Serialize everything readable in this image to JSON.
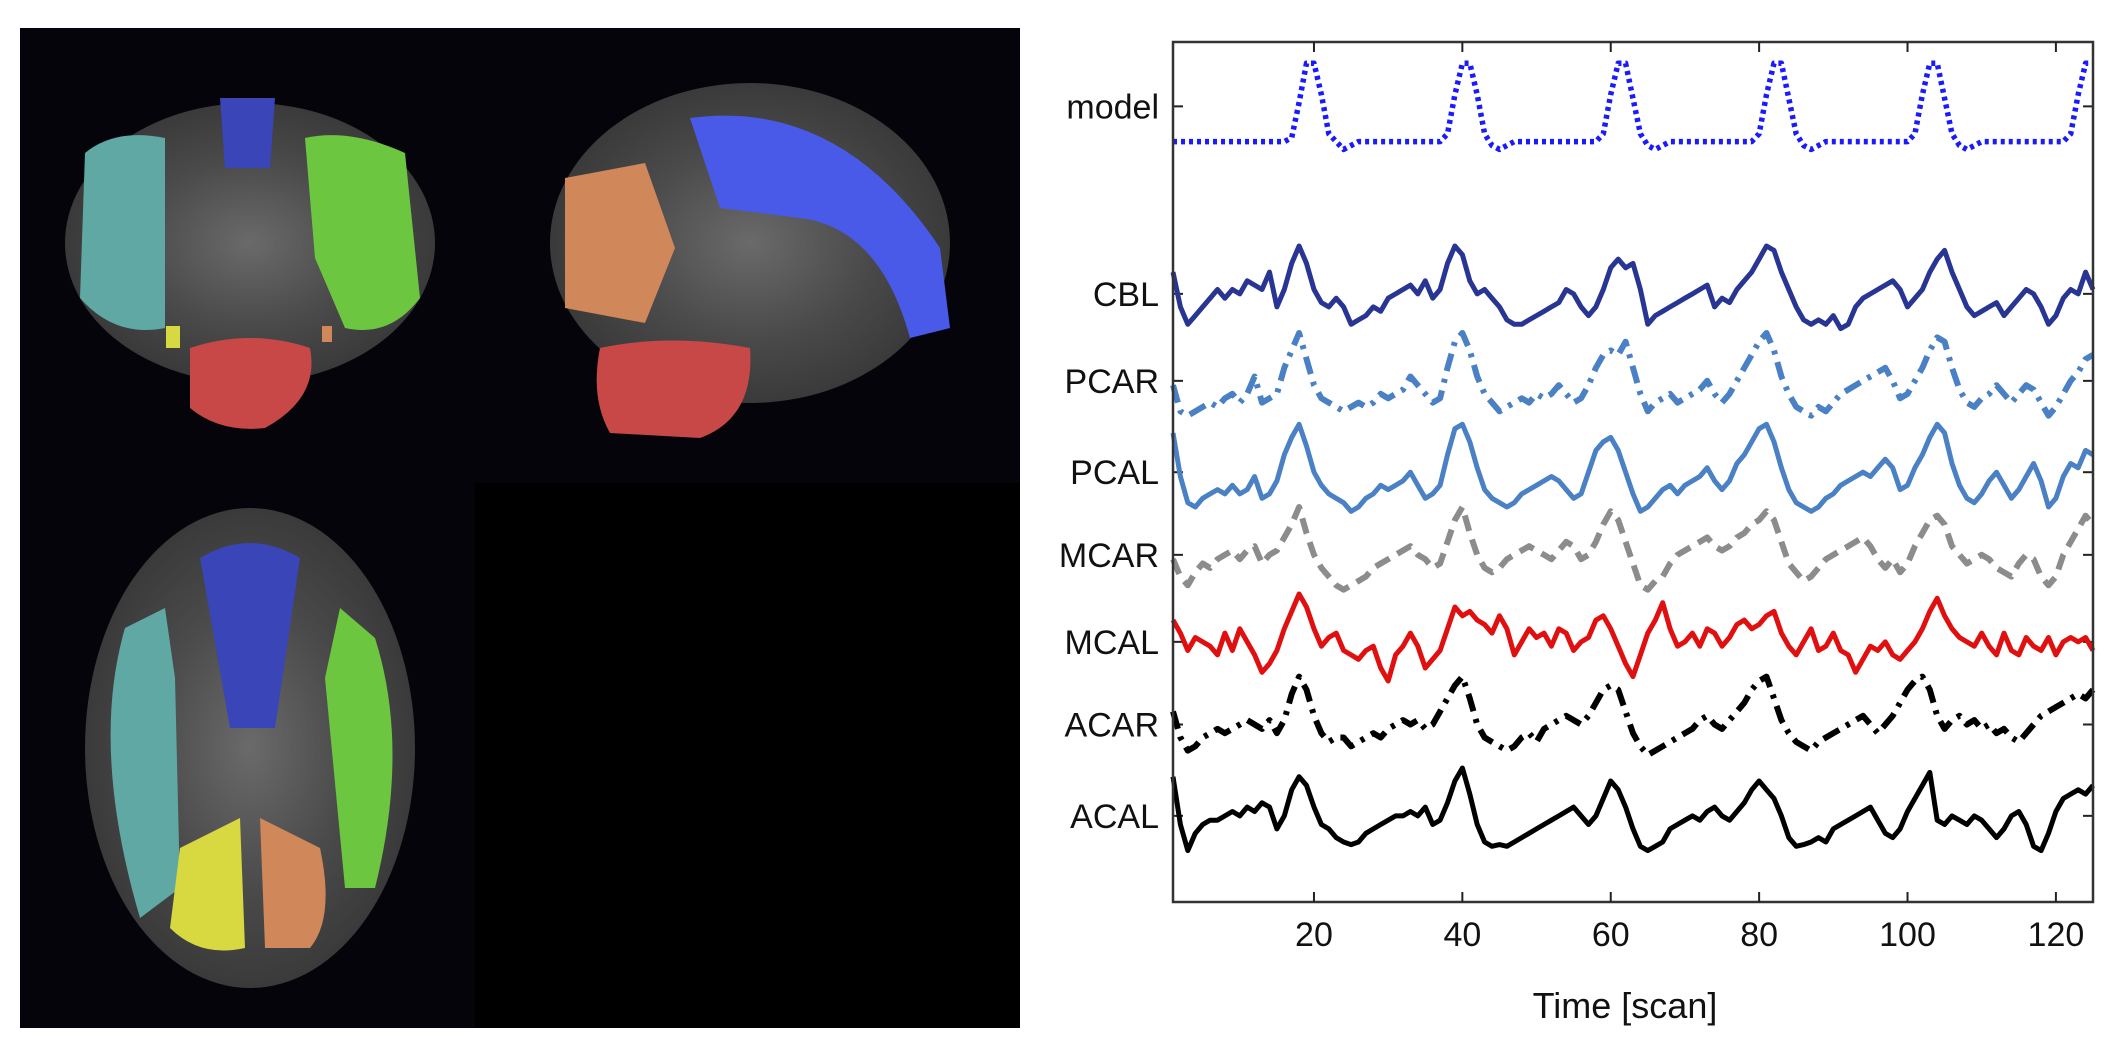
{
  "colors": {
    "model": "#1a1aff",
    "CBL": "#283593",
    "PCAR": "#4a80c4",
    "PCAL": "#4a80c4",
    "MCAR": "#8c8c8c",
    "MCAL": "#e01010",
    "ACAR": "#000000",
    "ACAL": "#000000",
    "atlas_blue": "#4a5ae8",
    "atlas_green": "#6cc640",
    "atlas_teal": "#5fa8a4",
    "atlas_orange": "#d0875a",
    "atlas_red": "#c84848",
    "atlas_yellow": "#d8d840",
    "background": "#000000"
  },
  "brain_views": [
    {
      "view": "coronal",
      "regions": [
        "blue",
        "green",
        "teal",
        "red",
        "yellow",
        "orange"
      ]
    },
    {
      "view": "sagittal",
      "regions": [
        "blue",
        "orange",
        "red"
      ]
    },
    {
      "view": "axial",
      "regions": [
        "blue",
        "green",
        "teal",
        "yellow",
        "orange"
      ]
    }
  ],
  "chart_data": {
    "type": "line",
    "xlabel": "Time [scan]",
    "ylabel": "",
    "title": "",
    "xlim": [
      1,
      125
    ],
    "xticks": [
      20,
      40,
      60,
      80,
      100,
      120
    ],
    "grid": false,
    "series_labels_position": "left",
    "series": [
      {
        "name": "model",
        "style": "dotted",
        "color": "#1a1aff",
        "offset": 8.2,
        "amplitude": 0.9,
        "values": [
          0,
          0,
          0,
          0,
          0,
          0,
          0,
          0,
          0,
          0,
          0,
          0,
          0,
          0,
          0,
          0,
          0.05,
          0.5,
          1,
          1,
          0.6,
          0.1,
          0,
          -0.1,
          -0.05,
          0,
          0,
          0,
          0,
          0,
          0,
          0,
          0,
          0,
          0,
          0,
          0,
          0.1,
          0.6,
          1,
          1,
          0.6,
          0.1,
          -0.05,
          -0.1,
          -0.05,
          0,
          0,
          0,
          0,
          0,
          0,
          0,
          0,
          0,
          0,
          0,
          0,
          0.1,
          0.6,
          1,
          1,
          0.55,
          0.1,
          -0.05,
          -0.1,
          -0.05,
          0,
          0,
          0,
          0,
          0,
          0,
          0,
          0,
          0,
          0,
          0,
          0,
          0.1,
          0.6,
          1,
          1,
          0.55,
          0.1,
          -0.05,
          -0.1,
          -0.05,
          0,
          0,
          0,
          0,
          0,
          0,
          0,
          0,
          0,
          0,
          0,
          0,
          0.1,
          0.6,
          1,
          1,
          0.55,
          0.1,
          -0.05,
          -0.1,
          -0.05,
          0,
          0,
          0,
          0,
          0,
          0,
          0,
          0,
          0,
          0,
          0,
          0,
          0.1,
          0.6,
          1,
          1
        ]
      },
      {
        "name": "CBL",
        "style": "solid",
        "color": "#283593",
        "offset": 6.0,
        "amplitude": 1.0,
        "values": [
          0.7,
          0.3,
          0.1,
          0.2,
          0.3,
          0.4,
          0.5,
          0.4,
          0.5,
          0.45,
          0.6,
          0.55,
          0.5,
          0.7,
          0.3,
          0.5,
          0.8,
          1.0,
          0.8,
          0.5,
          0.35,
          0.3,
          0.4,
          0.3,
          0.1,
          0.15,
          0.2,
          0.3,
          0.25,
          0.4,
          0.45,
          0.5,
          0.55,
          0.45,
          0.6,
          0.4,
          0.5,
          0.8,
          1.0,
          0.9,
          0.6,
          0.45,
          0.5,
          0.4,
          0.3,
          0.15,
          0.1,
          0.1,
          0.15,
          0.2,
          0.25,
          0.3,
          0.35,
          0.5,
          0.45,
          0.3,
          0.2,
          0.3,
          0.5,
          0.75,
          0.85,
          0.75,
          0.8,
          0.5,
          0.1,
          0.2,
          0.25,
          0.3,
          0.35,
          0.4,
          0.45,
          0.5,
          0.55,
          0.3,
          0.4,
          0.35,
          0.5,
          0.6,
          0.7,
          0.85,
          1.0,
          0.95,
          0.7,
          0.5,
          0.3,
          0.15,
          0.1,
          0.15,
          0.1,
          0.2,
          0.05,
          0.1,
          0.3,
          0.4,
          0.45,
          0.5,
          0.55,
          0.6,
          0.5,
          0.3,
          0.4,
          0.5,
          0.7,
          0.85,
          0.95,
          0.7,
          0.5,
          0.3,
          0.2,
          0.25,
          0.3,
          0.35,
          0.2,
          0.3,
          0.4,
          0.5,
          0.45,
          0.3,
          0.1,
          0.2,
          0.4,
          0.5,
          0.45,
          0.7,
          0.5
        ]
      },
      {
        "name": "PCAR",
        "style": "dashdot",
        "color": "#4a80c4",
        "offset": 5.0,
        "amplitude": 1.0,
        "values": [
          0.4,
          0.1,
          0.05,
          0.1,
          0.15,
          0.2,
          0.15,
          0.25,
          0.3,
          0.2,
          0.3,
          0.5,
          0.2,
          0.25,
          0.3,
          0.6,
          0.8,
          1.0,
          0.7,
          0.4,
          0.25,
          0.2,
          0.15,
          0.1,
          0.15,
          0.2,
          0.15,
          0.2,
          0.3,
          0.25,
          0.3,
          0.35,
          0.5,
          0.4,
          0.3,
          0.2,
          0.25,
          0.6,
          0.9,
          1.0,
          0.8,
          0.5,
          0.3,
          0.2,
          0.1,
          0.15,
          0.2,
          0.25,
          0.2,
          0.3,
          0.25,
          0.3,
          0.4,
          0.3,
          0.2,
          0.25,
          0.4,
          0.6,
          0.75,
          0.8,
          0.75,
          0.9,
          0.6,
          0.3,
          0.1,
          0.2,
          0.25,
          0.3,
          0.2,
          0.25,
          0.3,
          0.35,
          0.45,
          0.3,
          0.2,
          0.3,
          0.45,
          0.6,
          0.75,
          0.9,
          1.0,
          0.8,
          0.5,
          0.3,
          0.15,
          0.1,
          0.05,
          0.15,
          0.1,
          0.2,
          0.3,
          0.35,
          0.4,
          0.45,
          0.5,
          0.55,
          0.6,
          0.45,
          0.25,
          0.3,
          0.45,
          0.6,
          0.8,
          0.95,
          0.9,
          0.6,
          0.35,
          0.2,
          0.15,
          0.25,
          0.3,
          0.4,
          0.3,
          0.2,
          0.3,
          0.4,
          0.35,
          0.2,
          0.05,
          0.15,
          0.3,
          0.45,
          0.55,
          0.7,
          0.75
        ]
      },
      {
        "name": "PCAL",
        "style": "solid",
        "color": "#4a80c4",
        "offset": 3.95,
        "amplitude": 1.0,
        "values": [
          0.9,
          0.4,
          0.1,
          0.05,
          0.15,
          0.2,
          0.25,
          0.2,
          0.3,
          0.2,
          0.25,
          0.4,
          0.15,
          0.2,
          0.35,
          0.65,
          0.85,
          1.0,
          0.75,
          0.45,
          0.3,
          0.2,
          0.15,
          0.1,
          0.0,
          0.05,
          0.15,
          0.2,
          0.3,
          0.25,
          0.3,
          0.35,
          0.45,
          0.3,
          0.15,
          0.2,
          0.3,
          0.65,
          0.95,
          1.0,
          0.8,
          0.5,
          0.25,
          0.15,
          0.1,
          0.05,
          0.1,
          0.2,
          0.25,
          0.3,
          0.35,
          0.4,
          0.35,
          0.25,
          0.15,
          0.2,
          0.45,
          0.7,
          0.8,
          0.85,
          0.7,
          0.45,
          0.2,
          0.0,
          0.05,
          0.15,
          0.25,
          0.3,
          0.2,
          0.3,
          0.35,
          0.4,
          0.5,
          0.35,
          0.25,
          0.35,
          0.55,
          0.65,
          0.8,
          0.95,
          1.0,
          0.8,
          0.5,
          0.25,
          0.1,
          0.05,
          0.0,
          0.05,
          0.15,
          0.2,
          0.3,
          0.35,
          0.4,
          0.45,
          0.4,
          0.5,
          0.6,
          0.5,
          0.25,
          0.3,
          0.5,
          0.65,
          0.85,
          1.0,
          0.9,
          0.55,
          0.3,
          0.15,
          0.1,
          0.2,
          0.35,
          0.45,
          0.3,
          0.15,
          0.25,
          0.4,
          0.55,
          0.35,
          0.05,
          0.15,
          0.4,
          0.55,
          0.5,
          0.7,
          0.65
        ]
      },
      {
        "name": "MCAR",
        "style": "dashed",
        "color": "#8c8c8c",
        "offset": 3.0,
        "amplitude": 1.0,
        "values": [
          0.4,
          0.2,
          0.1,
          0.25,
          0.35,
          0.3,
          0.4,
          0.45,
          0.5,
          0.4,
          0.5,
          0.55,
          0.35,
          0.45,
          0.5,
          0.65,
          0.8,
          1.0,
          0.7,
          0.45,
          0.3,
          0.2,
          0.1,
          0.05,
          0.1,
          0.15,
          0.2,
          0.3,
          0.35,
          0.4,
          0.45,
          0.5,
          0.55,
          0.45,
          0.4,
          0.3,
          0.35,
          0.6,
          0.85,
          1.0,
          0.7,
          0.45,
          0.3,
          0.25,
          0.3,
          0.4,
          0.45,
          0.5,
          0.55,
          0.5,
          0.45,
          0.4,
          0.5,
          0.6,
          0.55,
          0.4,
          0.45,
          0.6,
          0.8,
          0.95,
          0.85,
          0.6,
          0.35,
          0.1,
          0.05,
          0.15,
          0.2,
          0.35,
          0.45,
          0.5,
          0.55,
          0.6,
          0.65,
          0.55,
          0.5,
          0.55,
          0.65,
          0.7,
          0.8,
          0.85,
          0.95,
          0.85,
          0.6,
          0.35,
          0.25,
          0.15,
          0.2,
          0.3,
          0.4,
          0.45,
          0.5,
          0.55,
          0.6,
          0.65,
          0.55,
          0.4,
          0.3,
          0.4,
          0.25,
          0.35,
          0.55,
          0.7,
          0.85,
          0.9,
          0.8,
          0.55,
          0.45,
          0.35,
          0.4,
          0.45,
          0.4,
          0.3,
          0.25,
          0.2,
          0.35,
          0.45,
          0.4,
          0.2,
          0.1,
          0.2,
          0.45,
          0.6,
          0.75,
          0.9,
          0.8
        ]
      },
      {
        "name": "MCAL",
        "style": "solid",
        "color": "#e01010",
        "offset": 2.0,
        "amplitude": 1.0,
        "values": [
          0.7,
          0.55,
          0.35,
          0.5,
          0.45,
          0.4,
          0.3,
          0.55,
          0.35,
          0.6,
          0.45,
          0.3,
          0.1,
          0.2,
          0.35,
          0.6,
          0.8,
          1.0,
          0.85,
          0.6,
          0.4,
          0.5,
          0.55,
          0.35,
          0.3,
          0.25,
          0.35,
          0.4,
          0.15,
          0.0,
          0.3,
          0.4,
          0.55,
          0.4,
          0.15,
          0.25,
          0.35,
          0.6,
          0.85,
          0.75,
          0.8,
          0.7,
          0.65,
          0.55,
          0.75,
          0.6,
          0.3,
          0.45,
          0.6,
          0.5,
          0.55,
          0.4,
          0.6,
          0.55,
          0.35,
          0.45,
          0.5,
          0.7,
          0.75,
          0.6,
          0.4,
          0.2,
          0.05,
          0.3,
          0.55,
          0.7,
          0.9,
          0.6,
          0.4,
          0.45,
          0.55,
          0.4,
          0.6,
          0.55,
          0.4,
          0.5,
          0.65,
          0.7,
          0.6,
          0.65,
          0.75,
          0.8,
          0.55,
          0.4,
          0.3,
          0.45,
          0.6,
          0.35,
          0.4,
          0.55,
          0.35,
          0.3,
          0.1,
          0.25,
          0.4,
          0.35,
          0.45,
          0.3,
          0.25,
          0.35,
          0.45,
          0.6,
          0.8,
          0.95,
          0.75,
          0.6,
          0.5,
          0.45,
          0.4,
          0.55,
          0.4,
          0.3,
          0.55,
          0.35,
          0.3,
          0.5,
          0.4,
          0.35,
          0.5,
          0.3,
          0.45,
          0.5,
          0.45,
          0.5,
          0.35
        ]
      },
      {
        "name": "ACAR",
        "style": "dashdot",
        "color": "#000000",
        "offset": 1.05,
        "amplitude": 1.0,
        "values": [
          0.6,
          0.3,
          0.15,
          0.2,
          0.3,
          0.35,
          0.4,
          0.35,
          0.4,
          0.45,
          0.5,
          0.45,
          0.4,
          0.5,
          0.35,
          0.5,
          0.8,
          1.0,
          0.85,
          0.55,
          0.35,
          0.25,
          0.3,
          0.3,
          0.2,
          0.25,
          0.3,
          0.35,
          0.3,
          0.4,
          0.45,
          0.5,
          0.45,
          0.5,
          0.4,
          0.45,
          0.6,
          0.75,
          0.9,
          1.0,
          0.75,
          0.45,
          0.3,
          0.25,
          0.2,
          0.15,
          0.2,
          0.3,
          0.35,
          0.25,
          0.4,
          0.45,
          0.5,
          0.55,
          0.5,
          0.45,
          0.55,
          0.7,
          0.85,
          0.9,
          0.85,
          0.6,
          0.35,
          0.2,
          0.1,
          0.15,
          0.2,
          0.25,
          0.3,
          0.35,
          0.4,
          0.5,
          0.55,
          0.45,
          0.4,
          0.5,
          0.6,
          0.7,
          0.85,
          0.95,
          1.0,
          0.75,
          0.5,
          0.35,
          0.25,
          0.2,
          0.15,
          0.25,
          0.3,
          0.35,
          0.4,
          0.45,
          0.5,
          0.55,
          0.45,
          0.35,
          0.45,
          0.55,
          0.7,
          0.85,
          0.95,
          1.0,
          0.85,
          0.55,
          0.4,
          0.5,
          0.55,
          0.45,
          0.5,
          0.4,
          0.45,
          0.35,
          0.4,
          0.3,
          0.25,
          0.35,
          0.45,
          0.55,
          0.6,
          0.65,
          0.7,
          0.75,
          0.8,
          0.75,
          0.85
        ]
      },
      {
        "name": "ACAL",
        "style": "solid",
        "color": "#000000",
        "offset": 0.0,
        "amplitude": 1.0,
        "values": [
          0.9,
          0.35,
          0.05,
          0.25,
          0.35,
          0.4,
          0.4,
          0.45,
          0.5,
          0.45,
          0.55,
          0.5,
          0.6,
          0.55,
          0.3,
          0.45,
          0.75,
          0.9,
          0.8,
          0.55,
          0.35,
          0.3,
          0.2,
          0.15,
          0.12,
          0.15,
          0.25,
          0.3,
          0.35,
          0.4,
          0.45,
          0.45,
          0.5,
          0.45,
          0.55,
          0.35,
          0.4,
          0.6,
          0.85,
          1.0,
          0.7,
          0.35,
          0.15,
          0.1,
          0.12,
          0.1,
          0.15,
          0.2,
          0.25,
          0.3,
          0.35,
          0.4,
          0.45,
          0.5,
          0.55,
          0.45,
          0.35,
          0.45,
          0.65,
          0.85,
          0.75,
          0.55,
          0.3,
          0.1,
          0.05,
          0.1,
          0.15,
          0.3,
          0.35,
          0.4,
          0.45,
          0.4,
          0.5,
          0.55,
          0.45,
          0.4,
          0.5,
          0.6,
          0.75,
          0.85,
          0.75,
          0.65,
          0.45,
          0.2,
          0.1,
          0.12,
          0.15,
          0.2,
          0.15,
          0.3,
          0.35,
          0.4,
          0.45,
          0.5,
          0.55,
          0.4,
          0.25,
          0.2,
          0.3,
          0.5,
          0.65,
          0.8,
          0.95,
          0.4,
          0.35,
          0.45,
          0.4,
          0.35,
          0.45,
          0.4,
          0.3,
          0.2,
          0.3,
          0.45,
          0.5,
          0.35,
          0.1,
          0.05,
          0.25,
          0.5,
          0.65,
          0.7,
          0.75,
          0.7,
          0.8
        ]
      }
    ]
  }
}
